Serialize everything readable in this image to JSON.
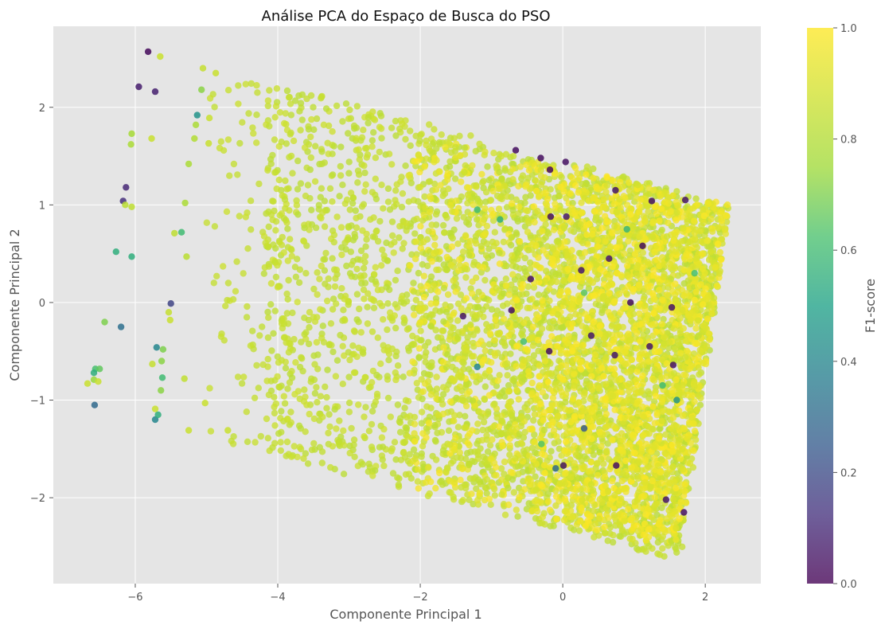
{
  "chart_data": {
    "type": "scatter",
    "title": "Análise PCA do Espaço de Busca do PSO",
    "xlabel": "Componente Principal 1",
    "ylabel": "Componente Principal 2",
    "xlim": [
      -7.15,
      2.78
    ],
    "ylim": [
      -2.88,
      2.83
    ],
    "xticks": [
      -6,
      -4,
      -2,
      0,
      2
    ],
    "yticks": [
      -2,
      -1,
      0,
      1,
      2
    ],
    "xtick_labels": [
      "−6",
      "−4",
      "−2",
      "0",
      "2"
    ],
    "ytick_labels": [
      "−2",
      "−1",
      "0",
      "1",
      "2"
    ],
    "grid": true,
    "colormap": "viridis",
    "colorbar": {
      "label": "F1-score",
      "range": [
        0.0,
        1.0
      ],
      "ticks": [
        0.0,
        0.2,
        0.4,
        0.6,
        0.8,
        1.0
      ],
      "tick_labels": [
        "0.0",
        "0.2",
        "0.4",
        "0.6",
        "0.8",
        "1.0"
      ]
    },
    "colors": {
      "background": "#e5e5e5",
      "grid": "#ffffff",
      "dominant_point": "#a0da39"
    },
    "points": [
      {
        "x": -5.82,
        "y": 2.57,
        "f1": 0.02
      },
      {
        "x": -5.65,
        "y": 2.52,
        "f1": 0.86
      },
      {
        "x": -5.95,
        "y": 2.21,
        "f1": 0.07
      },
      {
        "x": -5.72,
        "y": 2.16,
        "f1": 0.08
      },
      {
        "x": -5.05,
        "y": 2.4,
        "f1": 0.85
      },
      {
        "x": -4.87,
        "y": 2.35,
        "f1": 0.86
      },
      {
        "x": -5.07,
        "y": 2.18,
        "f1": 0.72
      },
      {
        "x": -5.13,
        "y": 1.92,
        "f1": 0.45
      },
      {
        "x": -5.15,
        "y": 1.82,
        "f1": 0.78
      },
      {
        "x": -4.96,
        "y": 1.89,
        "f1": 0.86
      },
      {
        "x": -5.17,
        "y": 1.68,
        "f1": 0.8
      },
      {
        "x": -4.97,
        "y": 1.63,
        "f1": 0.86
      },
      {
        "x": -5.77,
        "y": 1.68,
        "f1": 0.86
      },
      {
        "x": -6.05,
        "y": 1.73,
        "f1": 0.77
      },
      {
        "x": -6.06,
        "y": 1.62,
        "f1": 0.78
      },
      {
        "x": -5.25,
        "y": 1.42,
        "f1": 0.78
      },
      {
        "x": -6.13,
        "y": 1.18,
        "f1": 0.1
      },
      {
        "x": -6.17,
        "y": 1.04,
        "f1": 0.12
      },
      {
        "x": -6.14,
        "y": 1.0,
        "f1": 0.82
      },
      {
        "x": -6.05,
        "y": 0.98,
        "f1": 0.83
      },
      {
        "x": -5.3,
        "y": 1.02,
        "f1": 0.78
      },
      {
        "x": -5.35,
        "y": 0.72,
        "f1": 0.6
      },
      {
        "x": -6.27,
        "y": 0.52,
        "f1": 0.55
      },
      {
        "x": -6.05,
        "y": 0.47,
        "f1": 0.55
      },
      {
        "x": -5.28,
        "y": 0.47,
        "f1": 0.82
      },
      {
        "x": -5.45,
        "y": 0.71,
        "f1": 0.83
      },
      {
        "x": -5.5,
        "y": -0.01,
        "f1": 0.18
      },
      {
        "x": -6.43,
        "y": -0.2,
        "f1": 0.7
      },
      {
        "x": -6.2,
        "y": -0.25,
        "f1": 0.32
      },
      {
        "x": -5.51,
        "y": -0.18,
        "f1": 0.86
      },
      {
        "x": -5.53,
        "y": -0.1,
        "f1": 0.85
      },
      {
        "x": -5.7,
        "y": -0.46,
        "f1": 0.4
      },
      {
        "x": -5.61,
        "y": -0.48,
        "f1": 0.7
      },
      {
        "x": -5.63,
        "y": -0.6,
        "f1": 0.72
      },
      {
        "x": -5.62,
        "y": -0.77,
        "f1": 0.6
      },
      {
        "x": -5.64,
        "y": -0.9,
        "f1": 0.72
      },
      {
        "x": -6.56,
        "y": -0.68,
        "f1": 0.62
      },
      {
        "x": -6.5,
        "y": -0.68,
        "f1": 0.66
      },
      {
        "x": -6.58,
        "y": -0.72,
        "f1": 0.55
      },
      {
        "x": -6.58,
        "y": -0.79,
        "f1": 0.74
      },
      {
        "x": -6.52,
        "y": -0.81,
        "f1": 0.86
      },
      {
        "x": -6.67,
        "y": -0.83,
        "f1": 0.86
      },
      {
        "x": -6.57,
        "y": -1.05,
        "f1": 0.3
      },
      {
        "x": -5.72,
        "y": -1.2,
        "f1": 0.4
      },
      {
        "x": -5.68,
        "y": -1.15,
        "f1": 0.55
      },
      {
        "x": -5.76,
        "y": -0.63,
        "f1": 0.85
      },
      {
        "x": -5.72,
        "y": -1.09,
        "f1": 0.86
      },
      {
        "x": -5.31,
        "y": -0.78,
        "f1": 0.84
      },
      {
        "x": -5.25,
        "y": -1.31,
        "f1": 0.86
      },
      {
        "x": -5.02,
        "y": -1.03,
        "f1": 0.86
      },
      {
        "x": -4.7,
        "y": -1.31,
        "f1": 0.86
      },
      {
        "x": -0.66,
        "y": 1.56,
        "f1": 0.03
      },
      {
        "x": -0.31,
        "y": 1.48,
        "f1": 0.03
      },
      {
        "x": 0.04,
        "y": 1.44,
        "f1": 0.04
      },
      {
        "x": -0.18,
        "y": 1.36,
        "f1": 0.02
      },
      {
        "x": 0.74,
        "y": 1.15,
        "f1": 0.05
      },
      {
        "x": 1.25,
        "y": 1.04,
        "f1": 0.04
      },
      {
        "x": 1.72,
        "y": 1.05,
        "f1": 0.05
      },
      {
        "x": -0.17,
        "y": 0.88,
        "f1": 0.04
      },
      {
        "x": 0.05,
        "y": 0.88,
        "f1": 0.06
      },
      {
        "x": 1.12,
        "y": 0.58,
        "f1": 0.03
      },
      {
        "x": 0.65,
        "y": 0.45,
        "f1": 0.05
      },
      {
        "x": 0.26,
        "y": 0.33,
        "f1": 0.06
      },
      {
        "x": -0.45,
        "y": 0.24,
        "f1": 0.04
      },
      {
        "x": 0.95,
        "y": 0.0,
        "f1": 0.03
      },
      {
        "x": 1.53,
        "y": -0.05,
        "f1": 0.05
      },
      {
        "x": -1.4,
        "y": -0.14,
        "f1": 0.05
      },
      {
        "x": -0.72,
        "y": -0.08,
        "f1": 0.04
      },
      {
        "x": 0.4,
        "y": -0.34,
        "f1": 0.06
      },
      {
        "x": -0.19,
        "y": -0.5,
        "f1": 0.04
      },
      {
        "x": 1.22,
        "y": -0.45,
        "f1": 0.05
      },
      {
        "x": 1.55,
        "y": -0.64,
        "f1": 0.04
      },
      {
        "x": 0.73,
        "y": -0.54,
        "f1": 0.06
      },
      {
        "x": 0.01,
        "y": -1.67,
        "f1": 0.05
      },
      {
        "x": 0.75,
        "y": -1.67,
        "f1": 0.04
      },
      {
        "x": 1.45,
        "y": -2.02,
        "f1": 0.05
      },
      {
        "x": 1.7,
        "y": -2.15,
        "f1": 0.04
      },
      {
        "x": 0.3,
        "y": -1.29,
        "f1": 0.25
      },
      {
        "x": -1.2,
        "y": -0.66,
        "f1": 0.4
      },
      {
        "x": -0.1,
        "y": -1.7,
        "f1": 0.3
      },
      {
        "x": -0.88,
        "y": 0.85,
        "f1": 0.55
      },
      {
        "x": -1.2,
        "y": 0.95,
        "f1": 0.6
      },
      {
        "x": 0.3,
        "y": 0.1,
        "f1": 0.65
      },
      {
        "x": 1.6,
        "y": -1.0,
        "f1": 0.45
      },
      {
        "x": 1.85,
        "y": 0.3,
        "f1": 0.62
      },
      {
        "x": -0.55,
        "y": -0.4,
        "f1": 0.62
      },
      {
        "x": 0.9,
        "y": 0.75,
        "f1": 0.58
      },
      {
        "x": 1.4,
        "y": -0.85,
        "f1": 0.6
      },
      {
        "x": -0.3,
        "y": -1.45,
        "f1": 0.64
      }
    ],
    "clusters": [
      {
        "x_range": [
          -4.2,
          2.35
        ],
        "y_range": [
          -2.65,
          2.25
        ],
        "count": 2600,
        "f1_range": [
          0.82,
          0.88
        ],
        "top_edge": [
          [
            -4.3,
            2.3
          ],
          [
            2.35,
            1.0
          ]
        ],
        "bottom_edge": [
          [
            -4.2,
            -1.55
          ],
          [
            1.65,
            -2.65
          ]
        ],
        "right_edge": [
          [
            2.35,
            1.0
          ],
          [
            1.65,
            -2.65
          ]
        ]
      },
      {
        "x_range": [
          -2.2,
          2.35
        ],
        "y_range": [
          -2.5,
          1.75
        ],
        "count": 1800,
        "f1_range": [
          0.82,
          0.99
        ],
        "top_edge": [
          [
            -2.2,
            1.75
          ],
          [
            2.35,
            1.0
          ]
        ],
        "bottom_edge": [
          [
            -2.2,
            -1.9
          ],
          [
            1.65,
            -2.55
          ]
        ],
        "right_edge": [
          [
            2.35,
            1.0
          ],
          [
            1.65,
            -2.55
          ]
        ]
      },
      {
        "x_range": [
          -0.5,
          2.35
        ],
        "y_range": [
          -2.4,
          1.5
        ],
        "count": 1200,
        "f1_range": [
          0.88,
          1.0
        ],
        "top_edge": [
          [
            -0.5,
            1.5
          ],
          [
            2.35,
            1.0
          ]
        ],
        "bottom_edge": [
          [
            -0.5,
            -2.2
          ],
          [
            1.65,
            -2.45
          ]
        ],
        "right_edge": [
          [
            2.35,
            1.0
          ],
          [
            1.65,
            -2.45
          ]
        ]
      },
      {
        "x_range": [
          -5.0,
          -3.8
        ],
        "y_range": [
          -1.6,
          2.35
        ],
        "count": 140,
        "f1_range": [
          0.84,
          0.87
        ],
        "top_edge": [
          [
            -5.0,
            2.35
          ],
          [
            -3.8,
            2.2
          ]
        ],
        "bottom_edge": [
          [
            -5.0,
            -1.4
          ],
          [
            -3.8,
            -1.6
          ]
        ],
        "right_edge": [
          [
            -3.8,
            2.2
          ],
          [
            -3.8,
            -1.6
          ]
        ]
      }
    ]
  }
}
